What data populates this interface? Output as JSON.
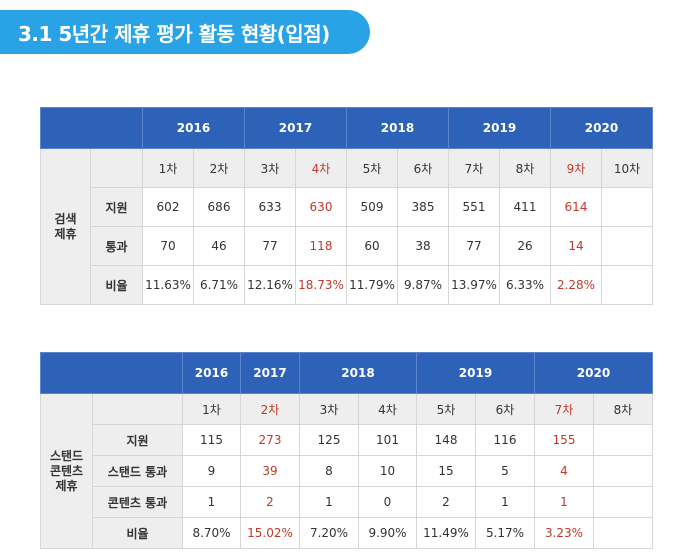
{
  "title": "3.1  5년간 제휴 평가 활동 현황(입점)",
  "table1": {
    "side_label": "검색\n제휴",
    "years": [
      "2016",
      "2017",
      "2018",
      "2019",
      "2020"
    ],
    "rounds": [
      "1차",
      "2차",
      "3차",
      "4차",
      "5차",
      "6차",
      "7차",
      "8차",
      "9차",
      "10차"
    ],
    "rows": [
      {
        "label": "지원",
        "values": [
          "602",
          "686",
          "633",
          "630",
          "509",
          "385",
          "551",
          "411",
          "614",
          ""
        ]
      },
      {
        "label": "통과",
        "values": [
          "70",
          "46",
          "77",
          "118",
          "60",
          "38",
          "77",
          "26",
          "14",
          ""
        ]
      },
      {
        "label": "비율",
        "values": [
          "11.63%",
          "6.71%",
          "12.16%",
          "18.73%",
          "11.79%",
          "9.87%",
          "13.97%",
          "6.33%",
          "2.28%",
          ""
        ]
      }
    ]
  },
  "table2": {
    "side_label": "스탠드\n콘텐츠\n제휴",
    "years": [
      "2016",
      "2017",
      "2018",
      "2019",
      "2020"
    ],
    "rounds": [
      "1차",
      "2차",
      "3차",
      "4차",
      "5차",
      "6차",
      "7차",
      "8차"
    ],
    "rows": [
      {
        "label": "지원",
        "values": [
          "115",
          "273",
          "125",
          "101",
          "148",
          "116",
          "155",
          ""
        ]
      },
      {
        "label": "스탠드 통과",
        "values": [
          "9",
          "39",
          "8",
          "10",
          "15",
          "5",
          "4",
          ""
        ]
      },
      {
        "label": "콘텐츠 통과",
        "values": [
          "1",
          "2",
          "1",
          "0",
          "2",
          "1",
          "1",
          ""
        ]
      },
      {
        "label": "비율",
        "values": [
          "8.70%",
          "15.02%",
          "7.20%",
          "9.90%",
          "11.49%",
          "5.17%",
          "3.23%",
          ""
        ]
      }
    ]
  },
  "colors": {
    "title_bg": "#2aa2e6",
    "header_bg": "#2e62b8",
    "highlight": "#c0392b",
    "cell_gray": "#eeeeee"
  }
}
